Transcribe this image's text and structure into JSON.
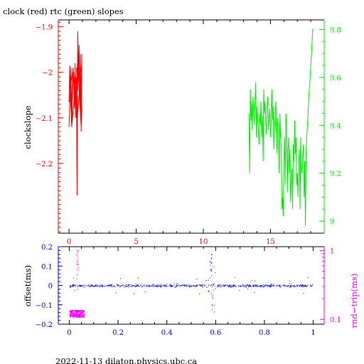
{
  "title": "clock (red) rtc (green) slopes",
  "footer": "2022-11-13  dilaton.physics.ubc.ca",
  "colors": {
    "red": "#ff0000",
    "green": "#00ee00",
    "blue": "#0000ff",
    "magenta": "#ff00ff",
    "axis": "#000000"
  },
  "chart_data": [
    {
      "type": "line",
      "ylabel": "clockslope",
      "y2label": "",
      "xlim": [
        -0.8,
        19.0
      ],
      "ylim": [
        -2.353,
        -1.885
      ],
      "y2lim": [
        8.95,
        9.84
      ],
      "xticks": [
        0,
        5,
        10,
        15
      ],
      "yticks": [
        -1.9,
        -2,
        -2.1,
        -2.2
      ],
      "y2ticks": [
        9,
        9.2,
        9.4,
        9.6,
        9.8
      ],
      "series": [
        {
          "name": "clock",
          "color": "red",
          "axis": "left",
          "x": [
            0.0,
            0.05,
            0.1,
            0.15,
            0.2,
            0.25,
            0.3,
            0.35,
            0.4,
            0.45,
            0.5,
            0.55,
            0.6,
            0.62,
            0.65,
            0.7,
            0.75,
            0.8,
            0.85,
            0.9,
            0.95,
            0.9,
            0.8,
            0.7,
            0.6,
            0.5,
            0.4,
            0.3,
            0.2,
            0.1,
            0.0,
            0.1,
            0.3,
            0.5,
            0.7,
            0.9,
            0.95,
            0.85,
            0.75,
            0.65,
            0.55,
            0.45,
            0.35,
            0.25,
            0.15,
            0.05,
            0.2,
            0.4,
            0.6,
            0.8,
            0.95,
            0.9,
            0.8,
            0.7,
            0.6,
            0.55
          ],
          "y": [
            -2.065,
            -1.985,
            -2.04,
            -1.99,
            -2.12,
            -2.06,
            -2.02,
            -2.0,
            -2.08,
            -1.98,
            -2.1,
            -2.02,
            -2.27,
            -2.1,
            -1.91,
            -2.0,
            -1.94,
            -2.06,
            -1.96,
            -2.13,
            -1.96,
            -2.1,
            -2.03,
            -1.98,
            -2.08,
            -2.01,
            -2.05,
            -1.99,
            -2.07,
            -2.02,
            -2.12,
            -2.03,
            -1.995,
            -2.06,
            -1.985,
            -2.0,
            -1.975,
            -2.09,
            -2.04,
            -1.97,
            -2.02,
            -2.06,
            -2.0,
            -2.04,
            -2.07,
            -2.02,
            -2.12,
            -2.05,
            -2.11,
            -2.03,
            -2.08,
            -2.12,
            -2.06,
            -2.01,
            -2.04,
            -1.99
          ]
        },
        {
          "name": "rtc",
          "color": "green",
          "axis": "right",
          "x": [
            13.4,
            13.45,
            13.5,
            13.55,
            13.6,
            13.65,
            13.7,
            13.75,
            13.8,
            13.85,
            13.9,
            13.95,
            14.0,
            14.05,
            14.1,
            14.15,
            14.2,
            14.25,
            14.3,
            14.35,
            14.4,
            14.45,
            14.5,
            14.55,
            14.6,
            14.65,
            14.7,
            14.75,
            14.8,
            14.85,
            14.9,
            14.95,
            15.0,
            15.05,
            15.1,
            15.15,
            15.2,
            15.25,
            15.3,
            15.35,
            15.4,
            15.45,
            15.5,
            15.55,
            15.6,
            15.65,
            15.7,
            15.75,
            15.8,
            15.85,
            15.9,
            15.95,
            16.0,
            16.05,
            16.1,
            16.15,
            16.2,
            16.25,
            16.3,
            16.35,
            16.4,
            16.45,
            16.5,
            16.55,
            16.6,
            16.65,
            16.7,
            16.75,
            16.8,
            16.85,
            16.9,
            16.95,
            17.0,
            17.05,
            17.1,
            17.15,
            17.2,
            17.25,
            17.3,
            17.35,
            17.4,
            17.45,
            17.5,
            17.55,
            17.6,
            17.65,
            17.7,
            17.75,
            17.8,
            17.85,
            17.9,
            17.95,
            18.0,
            18.05,
            18.1,
            18.15,
            18.2
          ],
          "y": [
            9.45,
            9.2,
            9.55,
            9.42,
            9.5,
            9.38,
            9.52,
            9.45,
            9.4,
            9.5,
            9.58,
            9.35,
            9.48,
            9.42,
            9.38,
            9.32,
            9.45,
            9.4,
            9.5,
            9.35,
            9.44,
            9.25,
            9.55,
            9.45,
            9.5,
            9.42,
            9.36,
            9.48,
            9.52,
            9.38,
            9.43,
            9.47,
            9.35,
            9.4,
            9.55,
            9.42,
            9.48,
            9.3,
            9.38,
            9.45,
            9.5,
            9.33,
            9.28,
            9.43,
            9.4,
            9.2,
            9.45,
            9.35,
            9.3,
            9.05,
            9.1,
            9.02,
            9.25,
            9.35,
            9.15,
            9.45,
            9.4,
            9.12,
            9.3,
            9.35,
            9.2,
            9.3,
            9.08,
            9.15,
            9.22,
            9.05,
            9.32,
            9.25,
            9.42,
            9.28,
            9.35,
            9.15,
            9.2,
            9.1,
            9.25,
            9.3,
            9.05,
            9.35,
            9.25,
            9.2,
            9.28,
            9.32,
            9.1,
            9.25,
            8.98,
            9.28,
            9.35,
            9.4,
            9.45,
            9.52,
            9.55,
            9.6,
            9.65,
            9.7,
            9.75,
            9.8,
            9.8
          ]
        }
      ]
    },
    {
      "type": "scatter",
      "ylabel": "offset(ms)",
      "y2label": "rnd−trip(ms)",
      "xlim": [
        -0.045,
        1.045
      ],
      "ylim": [
        -0.2,
        0.2
      ],
      "y2lim": [
        0.085,
        1.14
      ],
      "y2log": true,
      "xticks": [
        0,
        0.2,
        0.4,
        0.6,
        0.8,
        1
      ],
      "yticks": [
        0.2,
        0.1,
        0,
        -0.1,
        -0.2
      ],
      "y2ticks": [
        1,
        0.1
      ],
      "series": [
        {
          "name": "offset",
          "color": "blue",
          "axis": "left",
          "pattern": "dense noisy band around 0 from x=0 to x=1 with spikes near x=0.57-0.59 and scattered outliers"
        },
        {
          "name": "round-trip",
          "color": "magenta",
          "axis": "right",
          "pattern": "cluster at x=0.00-0.06 around 0.12 ms with a few spikes near x=0.03 up to ~1 ms"
        }
      ]
    }
  ]
}
